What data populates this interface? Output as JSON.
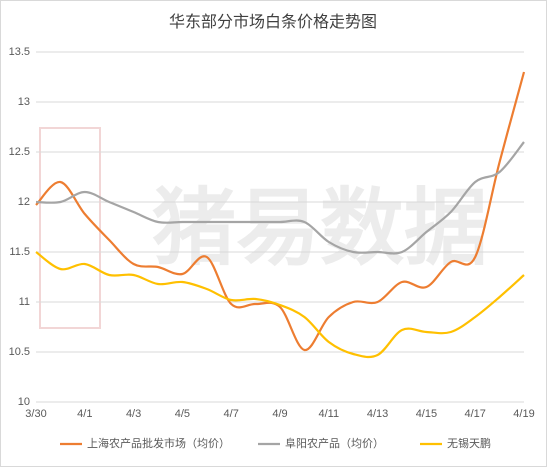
{
  "chart_data": {
    "type": "line",
    "title": "华东部分市场白条价格走势图",
    "watermark": "猪易数据",
    "categories": [
      "3/30",
      null,
      "4/1",
      null,
      "4/3",
      null,
      "4/5",
      null,
      "4/7",
      null,
      "4/9",
      null,
      "4/11",
      null,
      "4/13",
      null,
      "4/15",
      null,
      "4/17",
      null,
      "4/19"
    ],
    "series": [
      {
        "name": "上海农产品批发市场（均价）",
        "color": "#ED7D31",
        "values": [
          11.97,
          12.2,
          11.88,
          11.62,
          11.38,
          11.35,
          11.28,
          11.45,
          10.98,
          10.98,
          10.95,
          10.52,
          10.85,
          11.0,
          11.0,
          11.2,
          11.15,
          11.4,
          11.45,
          12.4,
          13.3
        ]
      },
      {
        "name": "阜阳农产品（均价）",
        "color": "#A5A5A5",
        "values": [
          12.0,
          12.0,
          12.1,
          12.0,
          11.9,
          11.8,
          11.8,
          11.8,
          11.8,
          11.8,
          11.8,
          11.8,
          11.6,
          11.5,
          11.5,
          11.5,
          11.7,
          11.9,
          12.2,
          12.3,
          12.6
        ]
      },
      {
        "name": "无锡天鹏",
        "color": "#FFC000",
        "values": [
          11.5,
          11.33,
          11.38,
          11.27,
          11.27,
          11.18,
          11.2,
          11.13,
          11.02,
          11.03,
          10.97,
          10.85,
          10.6,
          10.48,
          10.47,
          10.72,
          10.7,
          10.7,
          10.85,
          11.05,
          11.27
        ]
      }
    ],
    "ylim": [
      10,
      13.5
    ],
    "yticks": [
      10,
      {
        "value": 10.5,
        "label": "10.5"
      },
      11,
      {
        "value": 11.5,
        "label": "11.5"
      },
      12,
      {
        "value": 12.5,
        "label": "12.5"
      },
      13,
      {
        "value": 13.5,
        "label": "13.5"
      }
    ],
    "grid": true,
    "legend": "bottom"
  }
}
